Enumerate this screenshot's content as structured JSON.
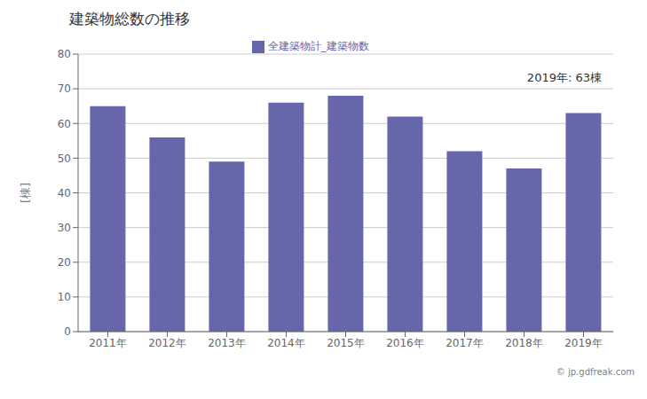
{
  "chart_data": {
    "type": "bar",
    "title": "建築物総数の推移",
    "ylabel": "[棟]",
    "annotations": [
      "2019年: 63棟",
      "© jp.gdfreak.com"
    ],
    "categories": [
      "2011年",
      "2012年",
      "2013年",
      "2014年",
      "2015年",
      "2016年",
      "2017年",
      "2018年",
      "2019年"
    ],
    "series": [
      {
        "name": "全建築物計_建築物数",
        "color": "#6666aa",
        "values": [
          65,
          56,
          49,
          66,
          68,
          62,
          52,
          47,
          63
        ]
      }
    ],
    "ylim": [
      0,
      80
    ],
    "yticks": [
      0,
      10,
      20,
      30,
      40,
      50,
      60,
      70,
      80
    ],
    "grid": true,
    "legend": "top"
  }
}
